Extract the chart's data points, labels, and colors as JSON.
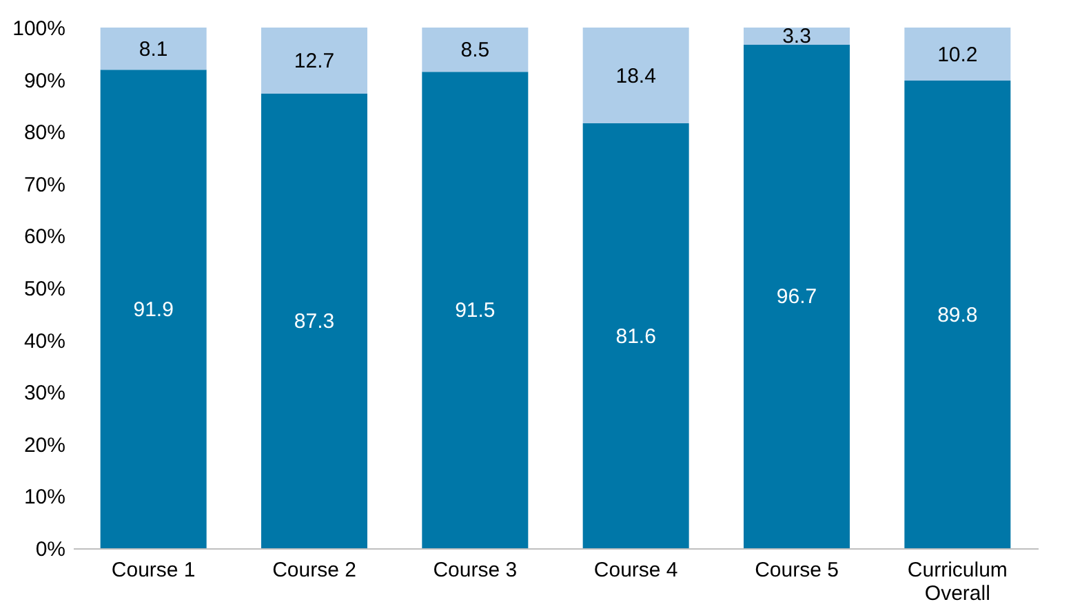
{
  "chart_data": {
    "type": "bar",
    "stacked": true,
    "data_labels": true,
    "grid": false,
    "legend": false,
    "categories": [
      "Course 1",
      "Course 2",
      "Course 3",
      "Course 4",
      "Course 5",
      "Curriculum Overall"
    ],
    "series": [
      {
        "color": "#0077a8",
        "values": [
          91.9,
          87.3,
          91.5,
          81.6,
          96.7,
          89.8
        ]
      },
      {
        "color": "#aecde9",
        "values": [
          8.1,
          12.7,
          8.5,
          18.4,
          3.3,
          10.2
        ]
      }
    ],
    "ylim": [
      0,
      100
    ],
    "yticks": [
      {
        "value": 0,
        "label": "0%"
      },
      {
        "value": 10,
        "label": "10%"
      },
      {
        "value": 20,
        "label": "20%"
      },
      {
        "value": 30,
        "label": "30%"
      },
      {
        "value": 40,
        "label": "40%"
      },
      {
        "value": 50,
        "label": "50%"
      },
      {
        "value": 60,
        "label": "60%"
      },
      {
        "value": 70,
        "label": "70%"
      },
      {
        "value": 80,
        "label": "80%"
      },
      {
        "value": 90,
        "label": "90%"
      },
      {
        "value": 100,
        "label": "100%"
      }
    ]
  }
}
